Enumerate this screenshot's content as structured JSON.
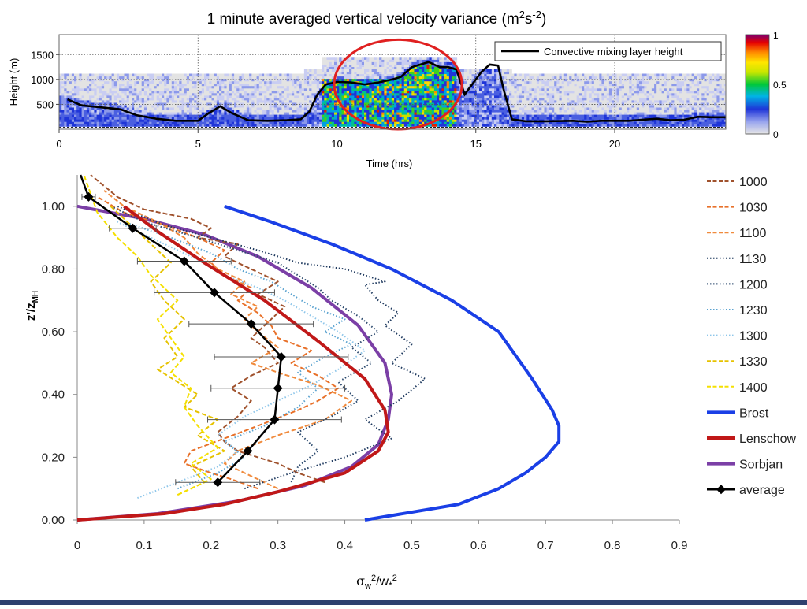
{
  "chart_data": [
    {
      "type": "heatmap",
      "title": "1 minute averaged vertical velocity variance (m²s⁻²)",
      "title_main": "1 minute averaged vertical velocity variance (m",
      "title_sup1": "2",
      "title_mid": "s",
      "title_sup2": "-2",
      "title_end": ")",
      "xlabel": "Time (hrs)",
      "ylabel": "Height (m)",
      "xlim": [
        0,
        24
      ],
      "ylim": [
        0,
        1900
      ],
      "x_ticks": [
        0,
        5,
        10,
        15,
        20
      ],
      "y_ticks": [
        500,
        1000,
        1500
      ],
      "colorbar": {
        "min": 0,
        "max": 1,
        "ticks": [
          0,
          0.5,
          1
        ],
        "tick_labels": [
          "0",
          "0.5",
          "1"
        ]
      },
      "legend_label": "Convective mixing layer height",
      "highlight": {
        "shape": "ellipse",
        "color": "#e02020",
        "center": [
          12.2,
          900
        ],
        "radii": [
          2.3,
          900
        ]
      },
      "mixing_layer_height": {
        "x": [
          0.3,
          0.8,
          1.5,
          2.2,
          2.8,
          3.5,
          4.2,
          5.0,
          5.4,
          5.8,
          6.2,
          6.8,
          7.5,
          8.2,
          8.7,
          9.0,
          9.3,
          9.6,
          10.0,
          10.5,
          11.0,
          11.5,
          12.0,
          12.3,
          12.7,
          13.0,
          13.3,
          13.7,
          14.0,
          14.3,
          14.6,
          15.0,
          15.2,
          15.5,
          15.8,
          16.0,
          16.3,
          16.8,
          17.5,
          18.5,
          19.0,
          19.5,
          20.5,
          21.5,
          22.0,
          22.5,
          23.0,
          23.5,
          24.0
        ],
        "y": [
          600,
          480,
          440,
          400,
          280,
          210,
          170,
          170,
          330,
          460,
          330,
          180,
          170,
          180,
          200,
          350,
          700,
          900,
          950,
          940,
          900,
          940,
          1000,
          1050,
          1250,
          1300,
          1350,
          1250,
          1250,
          1200,
          700,
          1000,
          1150,
          1300,
          1280,
          800,
          200,
          160,
          160,
          170,
          150,
          170,
          170,
          210,
          180,
          190,
          250,
          240,
          240
        ]
      }
    },
    {
      "type": "line",
      "xlabel": "σw²/w*²",
      "ylabel": "z'/zMH",
      "xlim": [
        0,
        0.9
      ],
      "ylim": [
        0,
        1.1
      ],
      "x_ticks": [
        0,
        0.1,
        0.2,
        0.3,
        0.4,
        0.5,
        0.6,
        0.7,
        0.8,
        0.9
      ],
      "x_tick_labels": [
        "0",
        "0.1",
        "0.2",
        "0.3",
        "0.4",
        "0.5",
        "0.6",
        "0.7",
        "0.8",
        "0.9"
      ],
      "y_ticks": [
        0,
        0.2,
        0.4,
        0.6,
        0.8,
        1.0
      ],
      "y_tick_labels": [
        "0.00",
        "0.20",
        "0.40",
        "0.60",
        "0.80",
        "1.00"
      ],
      "legend": "right",
      "series": [
        {
          "name": "1000",
          "color": "#a0522d",
          "style": "dashed",
          "x": [
            0.37,
            0.33,
            0.3,
            0.27,
            0.24,
            0.22,
            0.21,
            0.24,
            0.26,
            0.23,
            0.26,
            0.3,
            0.28,
            0.26,
            0.28,
            0.31,
            0.27,
            0.3,
            0.26,
            0.22,
            0.24,
            0.18,
            0.2,
            0.17,
            0.1,
            0.06,
            0.02
          ],
          "y": [
            0.12,
            0.15,
            0.18,
            0.2,
            0.22,
            0.25,
            0.28,
            0.33,
            0.38,
            0.42,
            0.46,
            0.5,
            0.55,
            0.58,
            0.62,
            0.68,
            0.72,
            0.76,
            0.8,
            0.84,
            0.88,
            0.9,
            0.93,
            0.96,
            0.99,
            1.03,
            1.1
          ]
        },
        {
          "name": "1030",
          "color": "#e8712a",
          "style": "dashed",
          "x": [
            0.27,
            0.23,
            0.2,
            0.16,
            0.17,
            0.22,
            0.27,
            0.33,
            0.36,
            0.39,
            0.36,
            0.32,
            0.35,
            0.3,
            0.29,
            0.27,
            0.24,
            0.26,
            0.22,
            0.2,
            0.22,
            0.18,
            0.13,
            0.07,
            0.03
          ],
          "y": [
            0.1,
            0.13,
            0.15,
            0.18,
            0.22,
            0.26,
            0.3,
            0.35,
            0.38,
            0.42,
            0.46,
            0.5,
            0.54,
            0.58,
            0.62,
            0.66,
            0.7,
            0.74,
            0.78,
            0.82,
            0.86,
            0.9,
            0.94,
            0.98,
            1.03
          ]
        },
        {
          "name": "1100",
          "color": "#f08a3c",
          "style": "dashed",
          "x": [
            0.3,
            0.26,
            0.22,
            0.24,
            0.3,
            0.37,
            0.41,
            0.36,
            0.3,
            0.26,
            0.3,
            0.27,
            0.25,
            0.27,
            0.23,
            0.25,
            0.21,
            0.18,
            0.16,
            0.12,
            0.07,
            0.04
          ],
          "y": [
            0.1,
            0.14,
            0.18,
            0.22,
            0.27,
            0.32,
            0.38,
            0.43,
            0.47,
            0.5,
            0.55,
            0.6,
            0.64,
            0.68,
            0.72,
            0.76,
            0.8,
            0.85,
            0.9,
            0.95,
            1.0,
            1.05
          ]
        },
        {
          "name": "1130",
          "color": "#1f3a5f",
          "style": "dotted",
          "x": [
            0.25,
            0.32,
            0.4,
            0.47,
            0.43,
            0.48,
            0.52,
            0.47,
            0.5,
            0.46,
            0.48,
            0.45,
            0.43,
            0.46,
            0.43,
            0.4,
            0.33,
            0.3,
            0.27,
            0.2,
            0.13,
            0.06
          ],
          "y": [
            0.1,
            0.15,
            0.2,
            0.26,
            0.32,
            0.38,
            0.45,
            0.5,
            0.56,
            0.62,
            0.66,
            0.7,
            0.75,
            0.76,
            0.78,
            0.8,
            0.82,
            0.84,
            0.86,
            0.9,
            0.94,
            1.0
          ]
        },
        {
          "name": "1200",
          "color": "#2c4a6e",
          "style": "dotted",
          "x": [
            0.32,
            0.33,
            0.36,
            0.33,
            0.38,
            0.42,
            0.39,
            0.44,
            0.41,
            0.45,
            0.42,
            0.38,
            0.36,
            0.33,
            0.3,
            0.24,
            0.18,
            0.1,
            0.05
          ],
          "y": [
            0.12,
            0.17,
            0.22,
            0.28,
            0.33,
            0.38,
            0.44,
            0.5,
            0.55,
            0.6,
            0.65,
            0.7,
            0.74,
            0.78,
            0.82,
            0.86,
            0.9,
            0.95,
            1.0
          ]
        },
        {
          "name": "1230",
          "color": "#5ba3d0",
          "style": "dotted",
          "x": [
            0.15,
            0.21,
            0.25,
            0.22,
            0.28,
            0.33,
            0.36,
            0.33,
            0.37,
            0.41,
            0.37,
            0.4,
            0.35,
            0.32,
            0.29,
            0.24,
            0.2,
            0.14,
            0.07
          ],
          "y": [
            0.1,
            0.15,
            0.2,
            0.25,
            0.3,
            0.36,
            0.42,
            0.47,
            0.52,
            0.56,
            0.6,
            0.64,
            0.68,
            0.72,
            0.76,
            0.8,
            0.85,
            0.9,
            0.95
          ]
        },
        {
          "name": "1300",
          "color": "#8ec6ea",
          "style": "dotted",
          "x": [
            0.09,
            0.15,
            0.21,
            0.24,
            0.21,
            0.25,
            0.3,
            0.35,
            0.39,
            0.43,
            0.39,
            0.35,
            0.31,
            0.27,
            0.22,
            0.18,
            0.13,
            0.06
          ],
          "y": [
            0.07,
            0.12,
            0.17,
            0.22,
            0.27,
            0.33,
            0.38,
            0.43,
            0.48,
            0.54,
            0.6,
            0.65,
            0.7,
            0.74,
            0.78,
            0.83,
            0.88,
            0.95
          ]
        },
        {
          "name": "1330",
          "color": "#e6c200",
          "style": "dashed",
          "x": [
            0.15,
            0.19,
            0.17,
            0.22,
            0.18,
            0.21,
            0.16,
            0.18,
            0.15,
            0.12,
            0.15,
            0.13,
            0.16,
            0.13,
            0.11,
            0.14,
            0.1,
            0.05
          ],
          "y": [
            0.08,
            0.12,
            0.17,
            0.22,
            0.27,
            0.32,
            0.36,
            0.4,
            0.44,
            0.48,
            0.52,
            0.58,
            0.64,
            0.7,
            0.76,
            0.82,
            0.9,
            1.0
          ]
        },
        {
          "name": "1400",
          "color": "#f5e000",
          "style": "dashed",
          "x": [
            0.15,
            0.2,
            0.17,
            0.21,
            0.18,
            0.16,
            0.17,
            0.14,
            0.16,
            0.14,
            0.12,
            0.15,
            0.11,
            0.09,
            0.06,
            0.03,
            0.01
          ],
          "y": [
            0.08,
            0.13,
            0.18,
            0.23,
            0.3,
            0.36,
            0.42,
            0.47,
            0.52,
            0.58,
            0.64,
            0.7,
            0.78,
            0.84,
            0.9,
            0.98,
            1.1
          ]
        },
        {
          "name": "Brost",
          "color": "#1a3fe6",
          "style": "solid",
          "x": [
            0.43,
            0.57,
            0.63,
            0.67,
            0.7,
            0.72,
            0.72,
            0.71,
            0.68,
            0.63,
            0.56,
            0.47,
            0.38,
            0.29,
            0.22
          ],
          "y": [
            0.0,
            0.05,
            0.1,
            0.15,
            0.2,
            0.25,
            0.3,
            0.35,
            0.45,
            0.6,
            0.7,
            0.8,
            0.88,
            0.95,
            1.0
          ]
        },
        {
          "name": "Lenschow",
          "color": "#c01818",
          "style": "solid",
          "x": [
            0.0,
            0.13,
            0.22,
            0.3,
            0.4,
            0.45,
            0.465,
            0.46,
            0.43,
            0.36,
            0.28,
            0.19,
            0.12,
            0.07
          ],
          "y": [
            0.0,
            0.02,
            0.05,
            0.09,
            0.15,
            0.22,
            0.28,
            0.35,
            0.45,
            0.57,
            0.7,
            0.82,
            0.92,
            1.0
          ]
        },
        {
          "name": "Sorbjan",
          "color": "#7b3fa6",
          "style": "solid",
          "x": [
            0.0,
            0.12,
            0.24,
            0.34,
            0.41,
            0.45,
            0.465,
            0.47,
            0.46,
            0.42,
            0.35,
            0.27,
            0.19,
            0.1,
            0.0
          ],
          "y": [
            0.0,
            0.02,
            0.06,
            0.11,
            0.17,
            0.24,
            0.32,
            0.4,
            0.5,
            0.62,
            0.74,
            0.84,
            0.91,
            0.96,
            1.0
          ]
        },
        {
          "name": "average",
          "color": "#000000",
          "style": "solid-markers",
          "x": [
            0.21,
            0.255,
            0.295,
            0.3,
            0.305,
            0.26,
            0.205,
            0.16,
            0.083,
            0.017,
            0.005
          ],
          "y": [
            0.12,
            0.22,
            0.32,
            0.42,
            0.52,
            0.625,
            0.725,
            0.825,
            0.93,
            1.03,
            1.1
          ],
          "xerr": [
            0.063,
            0.0,
            0.1,
            0.1,
            0.1,
            0.093,
            0.09,
            0.07,
            0.035,
            0.01,
            0.0
          ],
          "markers": [
            true,
            true,
            true,
            true,
            true,
            true,
            true,
            true,
            true,
            true,
            false
          ]
        }
      ]
    }
  ]
}
